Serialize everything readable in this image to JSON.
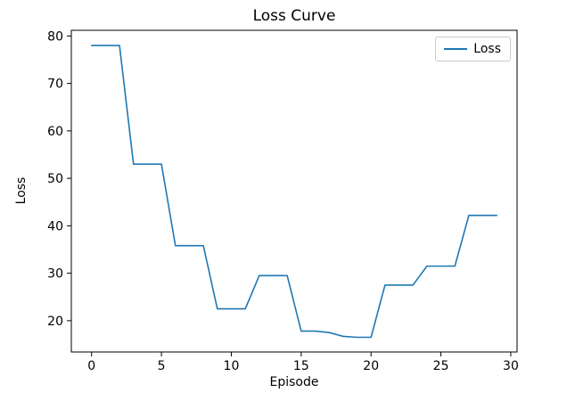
{
  "chart_data": {
    "type": "line",
    "title": "Loss Curve",
    "xlabel": "Episode",
    "ylabel": "Loss",
    "grid": false,
    "legend_position": "upper right",
    "x": [
      0,
      1,
      2,
      3,
      4,
      5,
      6,
      7,
      8,
      9,
      10,
      11,
      12,
      13,
      14,
      15,
      16,
      17,
      18,
      19,
      20,
      21,
      22,
      23,
      24,
      25,
      26,
      27,
      28,
      29
    ],
    "series": [
      {
        "name": "Loss",
        "color": "#1f77b4",
        "values": [
          78,
          78,
          78,
          53,
          53,
          53,
          35.8,
          35.8,
          35.8,
          22.5,
          22.5,
          22.5,
          29.5,
          29.5,
          29.5,
          17.8,
          17.8,
          17.5,
          16.7,
          16.5,
          16.5,
          27.5,
          27.5,
          27.5,
          31.5,
          31.5,
          31.5,
          42.2,
          42.2,
          42.2
        ]
      }
    ],
    "xlim": [
      -1.45,
      30.45
    ],
    "ylim": [
      13.4,
      81.2
    ],
    "xticks": [
      0,
      5,
      10,
      15,
      20,
      25,
      30
    ],
    "yticks": [
      20,
      30,
      40,
      50,
      60,
      70,
      80
    ]
  },
  "figure": {
    "background": "#ffffff",
    "spine_color": "#000000",
    "line_color": "#1f77b4"
  },
  "legend": {
    "entries": [
      {
        "label": "Loss",
        "color": "#1f77b4"
      }
    ]
  }
}
